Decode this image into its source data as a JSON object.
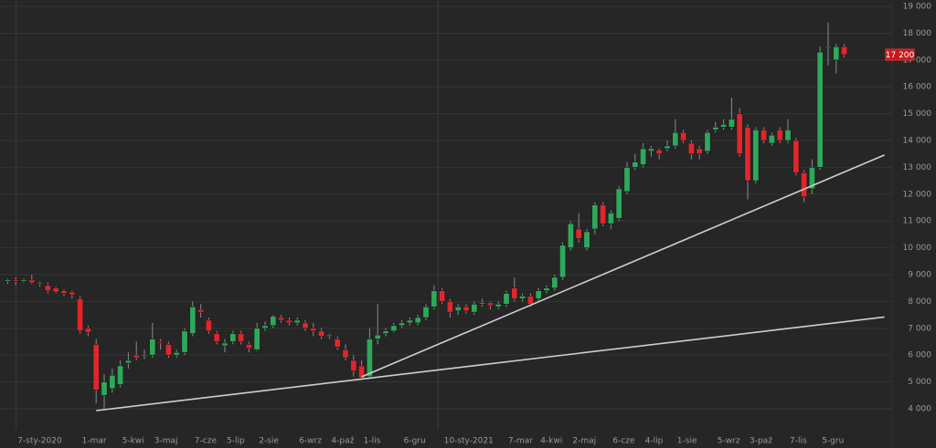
{
  "chart_data": {
    "type": "candlestick",
    "categories": [
      null,
      "7-sty-2020",
      null,
      null,
      null,
      null,
      null,
      null,
      null,
      "1-mar",
      null,
      null,
      null,
      null,
      "5-kwi",
      null,
      null,
      null,
      "3-maj",
      null,
      null,
      null,
      null,
      "7-cze",
      null,
      null,
      null,
      "5-lip",
      null,
      null,
      null,
      "2-sie",
      null,
      null,
      null,
      null,
      "6-wrz",
      null,
      null,
      null,
      "4-paź",
      null,
      null,
      null,
      "1-lis",
      null,
      null,
      null,
      null,
      "6-gru",
      null,
      null,
      null,
      null,
      "10-sty-2021",
      null,
      null,
      null,
      null,
      null,
      null,
      null,
      "7-mar",
      null,
      null,
      null,
      "4-kwi",
      null,
      null,
      null,
      "2-maj",
      null,
      null,
      null,
      null,
      "6-cze",
      null,
      null,
      null,
      "4-lip",
      null,
      null,
      null,
      "1-sie",
      null,
      null,
      null,
      null,
      "5-wrz",
      null,
      null,
      null,
      "3-paź",
      null,
      null,
      null,
      null,
      "7-lis",
      null,
      null,
      null,
      "5-gru",
      null,
      null,
      null,
      null,
      null,
      null,
      null,
      null
    ],
    "open": [
      8750,
      8800,
      8750,
      8800,
      8700,
      8600,
      8500,
      8400,
      8350,
      8100,
      7000,
      6400,
      4500,
      4750,
      4900,
      5700,
      6000,
      5950,
      6000,
      6500,
      6400,
      6000,
      6100,
      6800,
      7700,
      7300,
      6800,
      6350,
      6500,
      6800,
      6400,
      6200,
      7000,
      7100,
      7400,
      7300,
      7200,
      7200,
      7000,
      6900,
      6700,
      6600,
      6200,
      5800,
      5600,
      5200,
      6600,
      6800,
      6900,
      7100,
      7200,
      7200,
      7400,
      7800,
      8400,
      8000,
      7650,
      7800,
      7600,
      7900,
      7950,
      7800,
      7900,
      8500,
      8100,
      8200,
      8100,
      8400,
      8500,
      8900,
      10000,
      10700,
      10000,
      10700,
      11600,
      10900,
      11100,
      12100,
      13000,
      13100,
      13600,
      13650,
      13700,
      13800,
      14300,
      13900,
      13700,
      13600,
      14400,
      14500,
      14500,
      15000,
      14500,
      12500,
      14400,
      13900,
      14400,
      14000,
      14000,
      12800,
      12200,
      13000,
      17450,
      17000,
      17500,
      null,
      null,
      null,
      null,
      null
    ],
    "high": [
      8850,
      8900,
      8850,
      9000,
      8750,
      8700,
      8550,
      8450,
      8400,
      8200,
      7100,
      6600,
      5300,
      5500,
      5800,
      6100,
      6500,
      6200,
      7200,
      6600,
      6500,
      6200,
      7000,
      8000,
      7900,
      7400,
      6900,
      6600,
      6900,
      6900,
      6500,
      7200,
      7250,
      7500,
      7500,
      7400,
      7400,
      7300,
      7200,
      7000,
      6800,
      6700,
      6400,
      6000,
      5800,
      7000,
      7900,
      7000,
      7200,
      7300,
      7400,
      7500,
      7900,
      8600,
      8500,
      8100,
      7900,
      7900,
      8000,
      8100,
      8000,
      8000,
      8400,
      8900,
      8300,
      8300,
      8500,
      8600,
      9000,
      10200,
      11000,
      11300,
      10700,
      11700,
      11700,
      11400,
      12300,
      13200,
      13500,
      13900,
      13800,
      13700,
      14000,
      14800,
      14400,
      14000,
      13800,
      14400,
      14700,
      14800,
      15600,
      15200,
      14600,
      14500,
      14500,
      14300,
      14500,
      14800,
      14100,
      12900,
      13300,
      17500,
      18400,
      17600,
      17600,
      null,
      null,
      null,
      null,
      null
    ],
    "low": [
      8650,
      8600,
      8700,
      8650,
      8550,
      8300,
      8300,
      8200,
      8100,
      6800,
      6700,
      4200,
      4000,
      4600,
      4800,
      5500,
      5800,
      5850,
      5900,
      6200,
      5900,
      5900,
      6000,
      6700,
      7400,
      6800,
      6400,
      6100,
      6400,
      6400,
      6100,
      6150,
      6900,
      7000,
      7200,
      7100,
      7100,
      6900,
      6700,
      6600,
      6600,
      6200,
      5800,
      5200,
      5100,
      5100,
      6400,
      6700,
      6850,
      7000,
      7100,
      7100,
      7300,
      7700,
      7900,
      7400,
      7500,
      7550,
      7500,
      7800,
      7700,
      7700,
      7800,
      8000,
      8000,
      7800,
      8000,
      8300,
      8400,
      8800,
      9900,
      10200,
      9900,
      10500,
      10800,
      10700,
      11000,
      12000,
      12900,
      13000,
      13400,
      13300,
      13600,
      13700,
      13900,
      13300,
      13300,
      13500,
      14300,
      14400,
      14400,
      13400,
      11800,
      12400,
      13900,
      13800,
      13900,
      13900,
      12700,
      11700,
      12000,
      12900,
      16800,
      16500,
      17100,
      null,
      null,
      null,
      null,
      null
    ],
    "close": [
      8800,
      8750,
      8800,
      8700,
      8650,
      8400,
      8350,
      8300,
      8250,
      6900,
      6850,
      4700,
      5000,
      5250,
      5600,
      5800,
      5900,
      6000,
      6600,
      6450,
      6000,
      6100,
      6900,
      7800,
      7600,
      6900,
      6500,
      6450,
      6800,
      6500,
      6250,
      7000,
      7100,
      7450,
      7300,
      7200,
      7300,
      7000,
      6900,
      6700,
      6750,
      6300,
      5900,
      5400,
      5150,
      6600,
      6750,
      6900,
      7100,
      7200,
      7300,
      7400,
      7800,
      8400,
      8000,
      7600,
      7800,
      7650,
      7900,
      7950,
      7850,
      7900,
      8300,
      8100,
      8200,
      7900,
      8400,
      8500,
      8900,
      10100,
      10900,
      10350,
      10600,
      11600,
      10900,
      11300,
      12200,
      13000,
      13200,
      13700,
      13700,
      13500,
      13800,
      14300,
      14000,
      13500,
      13500,
      14300,
      14500,
      14600,
      14800,
      13500,
      12500,
      14400,
      14000,
      14200,
      14000,
      14400,
      12800,
      11900,
      13000,
      17300,
      17500,
      17500,
      17200,
      null,
      null,
      null,
      null,
      null
    ],
    "up_color": "#2ea85a",
    "down_color": "#e0262c",
    "ylim": [
      3250,
      19240
    ],
    "yticks": [
      {
        "value": 4000,
        "label": "4 000"
      },
      {
        "value": 5000,
        "label": "5 000"
      },
      {
        "value": 6000,
        "label": "6 000"
      },
      {
        "value": 7000,
        "label": "7 000"
      },
      {
        "value": 8000,
        "label": "8 000"
      },
      {
        "value": 9000,
        "label": "9 000"
      },
      {
        "value": 10000,
        "label": "10 000"
      },
      {
        "value": 11000,
        "label": "11 000"
      },
      {
        "value": 12000,
        "label": "12 000"
      },
      {
        "value": 13000,
        "label": "13 000"
      },
      {
        "value": 14000,
        "label": "14 000"
      },
      {
        "value": 15000,
        "label": "15 000"
      },
      {
        "value": 16000,
        "label": "16 000"
      },
      {
        "value": 17000,
        "label": "17 000"
      },
      {
        "value": 18000,
        "label": "18 000"
      },
      {
        "value": 19000,
        "label": "19 000"
      }
    ],
    "grid": true,
    "last_price": {
      "value": 17200,
      "label": "17 200"
    },
    "trendlines": [
      {
        "x": [
          11,
          109
        ],
        "values": [
          3930,
          7420
        ]
      },
      {
        "x": [
          44,
          109
        ],
        "values": [
          5190,
          13460
        ]
      }
    ]
  }
}
